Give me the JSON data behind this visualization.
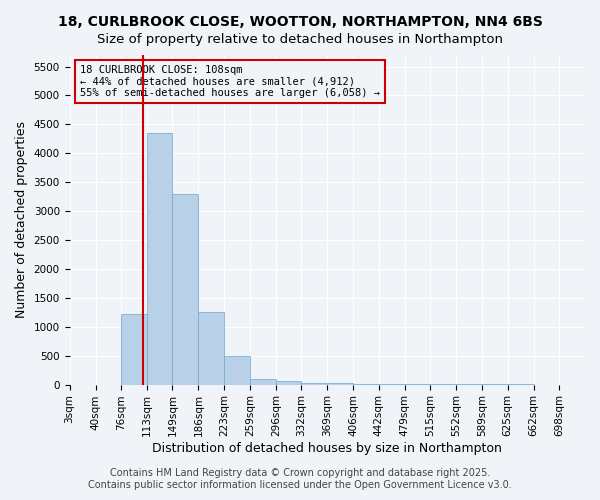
{
  "title_line1": "18, CURLBROOK CLOSE, WOOTTON, NORTHAMPTON, NN4 6BS",
  "title_line2": "Size of property relative to detached houses in Northampton",
  "xlabel": "Distribution of detached houses by size in Northampton",
  "ylabel": "Number of detached properties",
  "bar_color": "#b8d0e8",
  "bar_edge_color": "#6fa8d0",
  "bins": [
    3,
    40,
    76,
    113,
    149,
    186,
    223,
    259,
    296,
    332,
    369,
    406,
    442,
    479,
    515,
    552,
    589,
    625,
    662,
    698,
    735
  ],
  "counts": [
    0,
    0,
    1220,
    4350,
    3300,
    1250,
    490,
    90,
    55,
    35,
    25,
    15,
    10,
    8,
    6,
    4,
    3,
    2,
    1,
    1
  ],
  "property_size": 108,
  "vline_color": "#cc0000",
  "annotation_text": "18 CURLBROOK CLOSE: 108sqm\n← 44% of detached houses are smaller (4,912)\n55% of semi-detached houses are larger (6,058) →",
  "annotation_box_color": "#cc0000",
  "ylim": [
    0,
    5700
  ],
  "yticks": [
    0,
    500,
    1000,
    1500,
    2000,
    2500,
    3000,
    3500,
    4000,
    4500,
    5000,
    5500
  ],
  "background_color": "#f0f4f8",
  "grid_color": "#ffffff",
  "footer_line1": "Contains HM Land Registry data © Crown copyright and database right 2025.",
  "footer_line2": "Contains public sector information licensed under the Open Government Licence v3.0.",
  "title_fontsize": 10,
  "axis_label_fontsize": 9,
  "tick_fontsize": 7.5,
  "footer_fontsize": 7
}
